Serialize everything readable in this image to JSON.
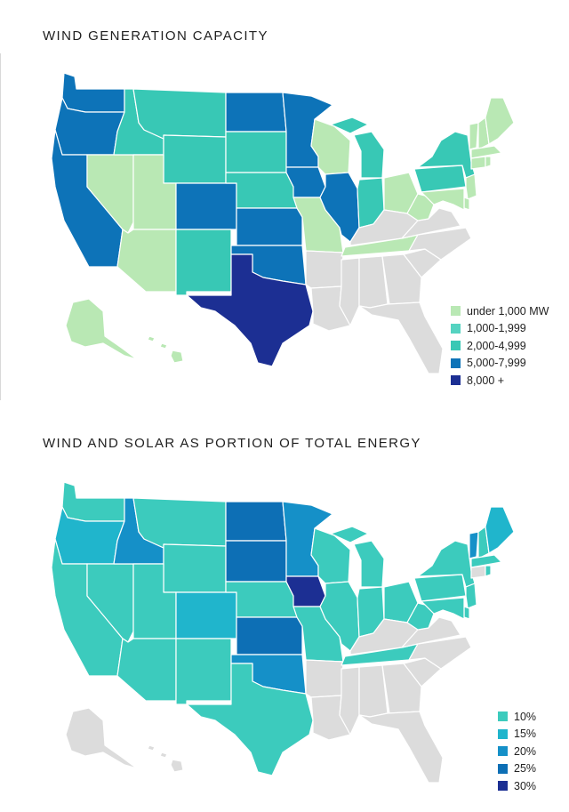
{
  "maps": [
    {
      "title": "WIND GENERATION CAPACITY",
      "legend": [
        {
          "label": "under 1,000 MW",
          "color": "#b9e8b4"
        },
        {
          "label": "1,000-1,999",
          "color": "#55d3c1"
        },
        {
          "label": "2,000-4,999",
          "color": "#38c8b5"
        },
        {
          "label": "5,000-7,999",
          "color": "#0d73b8"
        },
        {
          "label": "8,000 +",
          "color": "#1c2f93"
        }
      ],
      "no_data_color": "#dcdcdc",
      "state_category": {
        "WA": 3,
        "OR": 3,
        "CA": 3,
        "NV": 0,
        "ID": 2,
        "MT": 2,
        "WY": 2,
        "UT": 0,
        "AZ": 0,
        "CO": 3,
        "NM": 2,
        "ND": 3,
        "SD": 2,
        "NE": 2,
        "KS": 3,
        "OK": 3,
        "TX": 4,
        "MN": 3,
        "IA": 3,
        "MO": 0,
        "AR": -1,
        "LA": -1,
        "WI": 0,
        "IL": 3,
        "MI": 2,
        "IN": 2,
        "OH": 0,
        "KY": -1,
        "TN": 0,
        "MS": -1,
        "AL": -1,
        "GA": -1,
        "FL": -1,
        "SC": -1,
        "NC": -1,
        "VA": -1,
        "WV": 0,
        "PA": 2,
        "NY": 2,
        "NJ": 0,
        "DE": 0,
        "MD": 0,
        "VT": 0,
        "NH": 0,
        "ME": 0,
        "MA": 0,
        "CT": 0,
        "RI": 0,
        "AK": 0,
        "HI": 0
      }
    },
    {
      "title": "WIND AND SOLAR AS PORTION OF TOTAL ENERGY",
      "legend": [
        {
          "label": "10%",
          "color": "#3ccbbd"
        },
        {
          "label": "15%",
          "color": "#20b5cc"
        },
        {
          "label": "20%",
          "color": "#1590c8"
        },
        {
          "label": "25%",
          "color": "#0d6fb5"
        },
        {
          "label": "30%",
          "color": "#1c2f93"
        }
      ],
      "no_data_color": "#dcdcdc",
      "state_category": {
        "WA": 0,
        "OR": 1,
        "CA": 0,
        "NV": 0,
        "ID": 2,
        "MT": 0,
        "WY": 0,
        "UT": 0,
        "AZ": 0,
        "CO": 1,
        "NM": 0,
        "ND": 3,
        "SD": 3,
        "NE": 0,
        "KS": 3,
        "OK": 2,
        "TX": 0,
        "MN": 2,
        "IA": 4,
        "MO": 0,
        "AR": -1,
        "LA": -1,
        "WI": 0,
        "IL": 0,
        "MI": 0,
        "IN": 0,
        "OH": 0,
        "KY": -1,
        "TN": 0,
        "MS": -1,
        "AL": -1,
        "GA": -1,
        "FL": -1,
        "SC": -1,
        "NC": -1,
        "VA": -1,
        "WV": 0,
        "PA": 0,
        "NY": 0,
        "NJ": 0,
        "DE": 0,
        "MD": 0,
        "VT": 2,
        "NH": 0,
        "ME": 1,
        "MA": 0,
        "CT": -1,
        "RI": 0,
        "AK": -1,
        "HI": -1
      }
    }
  ]
}
